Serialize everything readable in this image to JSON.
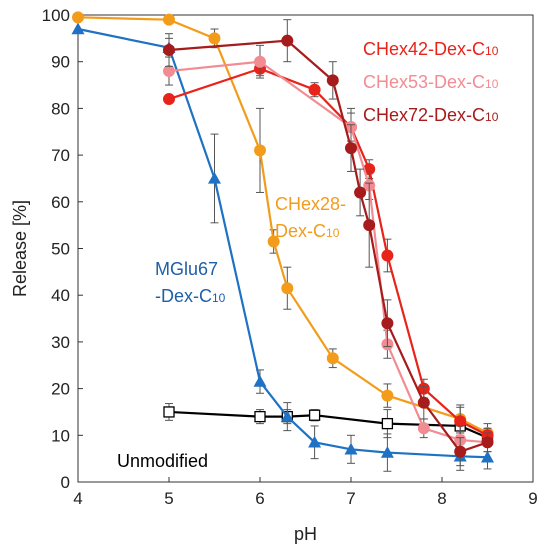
{
  "chart_data": {
    "type": "line",
    "xlabel": "pH",
    "ylabel": "Release [%]",
    "xlim": [
      4,
      9
    ],
    "ylim": [
      0,
      100
    ],
    "x_ticks": [
      4,
      5,
      6,
      7,
      8,
      9
    ],
    "y_ticks": [
      0,
      10,
      20,
      30,
      40,
      50,
      60,
      70,
      80,
      90,
      100
    ],
    "grid": false,
    "series": [
      {
        "name": "Unmodified",
        "color": "#000000",
        "marker": "square-open",
        "x": [
          5,
          6,
          6.3,
          6.6,
          7.4,
          8.2,
          8.5
        ],
        "y": [
          15,
          14,
          14,
          14.3,
          12.5,
          12,
          9.5
        ],
        "err": [
          1.8,
          1.5,
          1.5,
          1.2,
          3,
          1.5,
          1.5
        ]
      },
      {
        "name": "MGlu67-Dex-C10",
        "color": "#1f72c3",
        "marker": "triangle",
        "x": [
          4,
          5,
          5.5,
          6,
          6.3,
          6.6,
          7,
          7.4,
          8.2,
          8.5
        ],
        "y": [
          97,
          93,
          65,
          21.5,
          14,
          8.5,
          7,
          6.3,
          5.5,
          5.3
        ],
        "err": [
          0,
          2,
          9.5,
          2.5,
          3,
          3.5,
          3,
          4,
          3,
          2.5
        ]
      },
      {
        "name": "CHex28-Dex-C10",
        "color": "#f39c1b",
        "marker": "circle",
        "x": [
          4,
          5,
          5.5,
          6,
          6.15,
          6.3,
          6.8,
          7.4,
          8.2,
          8.5
        ],
        "y": [
          99.5,
          99,
          95,
          71,
          51.5,
          41.5,
          26.5,
          18.5,
          13.5,
          10.5
        ],
        "err": [
          0,
          0,
          2,
          9,
          2.5,
          4.5,
          2,
          2.5,
          3,
          2
        ]
      },
      {
        "name": "CHex42-Dex-C10",
        "color": "#e8231a",
        "marker": "circle",
        "x": [
          5,
          6,
          6.6,
          7,
          7.2,
          7.4,
          7.8,
          8.2,
          8.5
        ],
        "y": [
          82,
          88.5,
          84,
          76,
          67,
          48.5,
          20,
          13,
          10
        ],
        "err": [
          0,
          1.5,
          1.5,
          4,
          2,
          3.5,
          2,
          3,
          1.5
        ]
      },
      {
        "name": "CHex53-Dex-C10",
        "color": "#f28c93",
        "marker": "circle",
        "x": [
          5,
          6,
          7,
          7.2,
          7.4,
          7.8,
          8.2,
          8.5
        ],
        "y": [
          88,
          90,
          76,
          63.5,
          29.5,
          11.5,
          9,
          8.5
        ],
        "err": [
          3,
          3.5,
          3,
          3,
          3,
          2,
          3,
          2
        ]
      },
      {
        "name": "CHex72-Dex-C10",
        "color": "#a61b1b",
        "marker": "circle",
        "x": [
          5,
          6.3,
          6.8,
          7,
          7.1,
          7.2,
          7.4,
          7.8,
          8.2,
          8.5
        ],
        "y": [
          92.5,
          94.5,
          86,
          71.5,
          62,
          55,
          34,
          17,
          6.5,
          8.5
        ],
        "err": [
          3.5,
          4.5,
          4,
          5,
          5,
          9,
          5,
          3.5,
          3,
          2
        ]
      }
    ],
    "annotations": [
      {
        "id": "chex42",
        "text": "CHex42-Dex-C",
        "sub": "10",
        "color": "#e8231a"
      },
      {
        "id": "chex53",
        "text": "CHex53-Dex-C",
        "sub": "10",
        "color": "#f28c93"
      },
      {
        "id": "chex72",
        "text": "CHex72-Dex-C",
        "sub": "10",
        "color": "#a61b1b"
      },
      {
        "id": "chex28a",
        "text": "CHex28-",
        "sub": "",
        "color": "#f39c1b"
      },
      {
        "id": "chex28b",
        "text": "Dex-C",
        "sub": "10",
        "color": "#f39c1b"
      },
      {
        "id": "mglu_a",
        "text": "MGlu67",
        "sub": "",
        "color": "#1f5fa8"
      },
      {
        "id": "mglu_b",
        "text": "-Dex-C",
        "sub": "10",
        "color": "#1f5fa8"
      },
      {
        "id": "unmod",
        "text": "Unmodified",
        "sub": "",
        "color": "#000000"
      }
    ]
  }
}
